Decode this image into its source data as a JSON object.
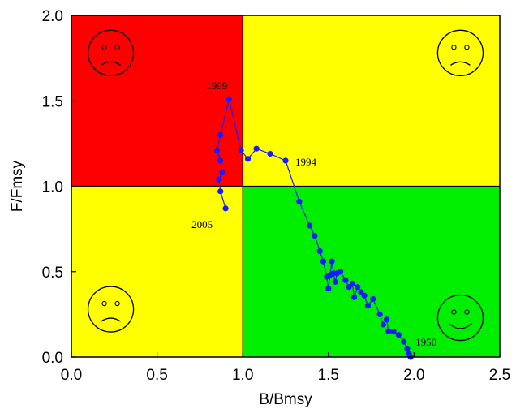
{
  "chart_data": {
    "type": "scatter",
    "xlabel": "B/Bmsy",
    "ylabel": "F/Fmsy",
    "xlim": [
      0,
      2.5
    ],
    "ylim": [
      0,
      2.0
    ],
    "x_ticks": [
      "0.0",
      "0.5",
      "1.0",
      "1.5",
      "2.0",
      "2.5"
    ],
    "y_ticks": [
      "0.0",
      "0.5",
      "1.0",
      "1.5",
      "2.0"
    ],
    "grid": false,
    "reference_lines": {
      "x": 1.0,
      "y": 1.0
    },
    "quadrants": [
      {
        "name": "overfishing-overfished",
        "x": [
          0,
          1
        ],
        "y": [
          1,
          2
        ],
        "color": "#ff0000",
        "face": "sad"
      },
      {
        "name": "overfishing-healthy-biomass",
        "x": [
          1,
          2.5
        ],
        "y": [
          1,
          2
        ],
        "color": "#ffff00",
        "face": "sad"
      },
      {
        "name": "no-overfishing-overfished",
        "x": [
          0,
          1
        ],
        "y": [
          0,
          1
        ],
        "color": "#ffff00",
        "face": "sad"
      },
      {
        "name": "no-overfishing-healthy-biomass",
        "x": [
          1,
          2.5
        ],
        "y": [
          0,
          1
        ],
        "color": "#00ee00",
        "face": "happy"
      }
    ],
    "series_color": "#1a1aff",
    "points": [
      [
        1.98,
        0.0
      ],
      [
        1.97,
        0.02
      ],
      [
        1.96,
        0.05
      ],
      [
        1.94,
        0.09
      ],
      [
        1.91,
        0.13
      ],
      [
        1.88,
        0.15
      ],
      [
        1.85,
        0.15
      ],
      [
        1.84,
        0.22
      ],
      [
        1.82,
        0.19
      ],
      [
        1.8,
        0.25
      ],
      [
        1.76,
        0.34
      ],
      [
        1.73,
        0.3
      ],
      [
        1.71,
        0.36
      ],
      [
        1.69,
        0.38
      ],
      [
        1.67,
        0.41
      ],
      [
        1.65,
        0.35
      ],
      [
        1.64,
        0.43
      ],
      [
        1.62,
        0.41
      ],
      [
        1.6,
        0.45
      ],
      [
        1.57,
        0.5
      ],
      [
        1.55,
        0.49
      ],
      [
        1.54,
        0.44
      ],
      [
        1.53,
        0.49
      ],
      [
        1.52,
        0.56
      ],
      [
        1.51,
        0.48
      ],
      [
        1.5,
        0.4
      ],
      [
        1.49,
        0.47
      ],
      [
        1.47,
        0.56
      ],
      [
        1.45,
        0.62
      ],
      [
        1.42,
        0.71
      ],
      [
        1.39,
        0.77
      ],
      [
        1.33,
        0.91
      ],
      [
        1.25,
        1.15
      ],
      [
        1.16,
        1.19
      ],
      [
        1.08,
        1.22
      ],
      [
        1.03,
        1.16
      ],
      [
        0.99,
        1.21
      ],
      [
        0.92,
        1.51
      ],
      [
        0.87,
        1.3
      ],
      [
        0.85,
        1.21
      ],
      [
        0.87,
        1.15
      ],
      [
        0.88,
        1.08
      ],
      [
        0.86,
        1.04
      ],
      [
        0.87,
        0.97
      ],
      [
        0.9,
        0.87
      ]
    ],
    "annotations": [
      {
        "text": "1999",
        "x": 0.92,
        "y": 1.51
      },
      {
        "text": "1994",
        "x": 1.25,
        "y": 1.15
      },
      {
        "text": "2005",
        "x": 0.9,
        "y": 0.87
      },
      {
        "text": "1950",
        "x": 1.98,
        "y": 0.0
      }
    ]
  }
}
